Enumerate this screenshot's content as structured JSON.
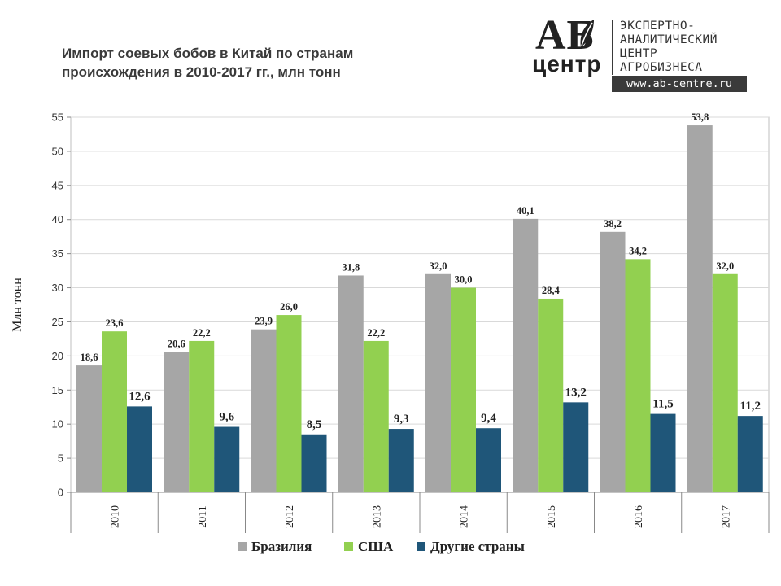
{
  "header": {
    "title": "Импорт соевых бобов в Китай по странам происхождения в 2010-2017 гг., млн тонн"
  },
  "logo": {
    "mark": "АБ",
    "sub": "центр",
    "lines": [
      "ЭКСПЕРТНО-",
      "АНАЛИТИЧЕСКИЙ",
      "ЦЕНТР",
      "АГРОБИЗНЕСА"
    ],
    "url": "www.ab-centre.ru"
  },
  "chart_data": {
    "type": "bar",
    "title": "Импорт соевых бобов в Китай по странам происхождения в 2010-2017 гг., млн тонн",
    "xlabel": "",
    "ylabel": "Млн тонн",
    "ylim": [
      0,
      55
    ],
    "yticks": [
      0,
      5,
      10,
      15,
      20,
      25,
      30,
      35,
      40,
      45,
      50,
      55
    ],
    "grid": true,
    "legend": "bottom",
    "categories": [
      "2010",
      "2011",
      "2012",
      "2013",
      "2014",
      "2015",
      "2016",
      "2017"
    ],
    "series": [
      {
        "name": "Бразилия",
        "color": "#a6a6a6",
        "values": [
          18.6,
          20.6,
          23.9,
          31.8,
          32.0,
          40.1,
          38.2,
          53.8
        ],
        "labels": [
          "18,6",
          "20,6",
          "23,9",
          "31,8",
          "32,0",
          "40,1",
          "38,2",
          "53,8"
        ]
      },
      {
        "name": "США",
        "color": "#92d050",
        "values": [
          23.6,
          22.2,
          26.0,
          22.2,
          30.0,
          28.4,
          34.2,
          32.0
        ],
        "labels": [
          "23,6",
          "22,2",
          "26,0",
          "22,2",
          "30,0",
          "28,4",
          "34,2",
          "32,0"
        ]
      },
      {
        "name": "Другие страны",
        "color": "#1f5679",
        "values": [
          12.6,
          9.6,
          8.5,
          9.3,
          9.4,
          13.2,
          11.5,
          11.2
        ],
        "labels": [
          "12,6",
          "9,6",
          "8,5",
          "9,3",
          "9,4",
          "13,2",
          "11,5",
          "11,2"
        ]
      }
    ]
  }
}
